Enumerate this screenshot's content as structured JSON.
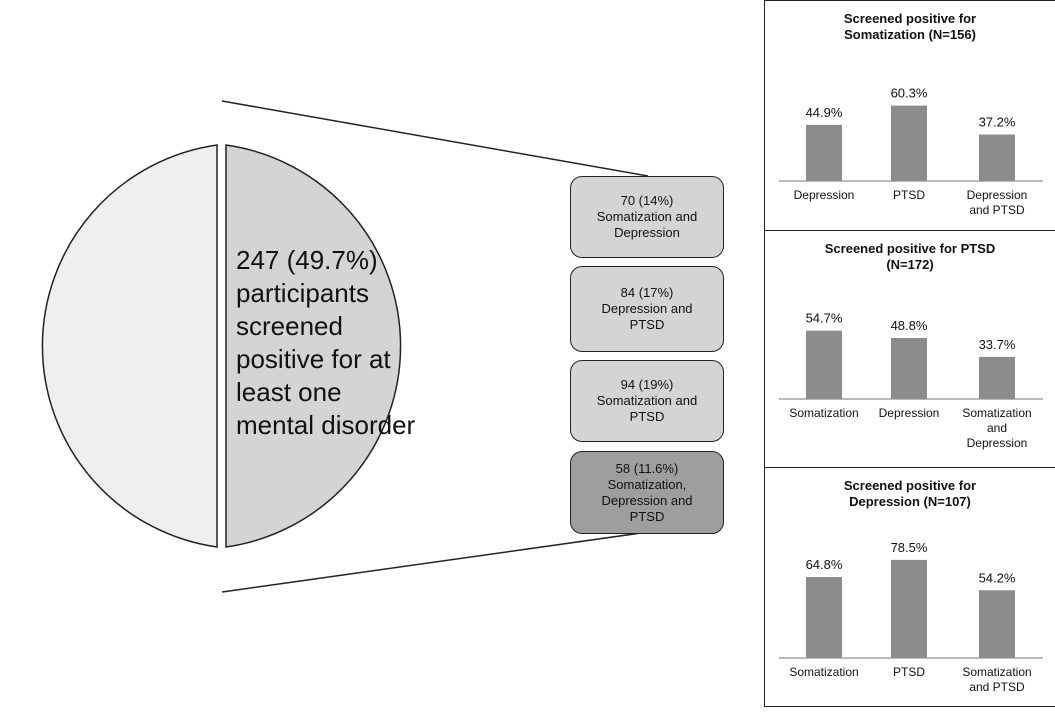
{
  "pie": {
    "text": "247 (49.7%) participants screened positive for at least one mental disorder",
    "percent": 49.7
  },
  "boxes": [
    {
      "text": "70 (14%)\nSomatization and\nDepression",
      "shade": "light"
    },
    {
      "text": "84 (17%)\nDepression and\nPTSD",
      "shade": "light"
    },
    {
      "text": "94 (19%)\nSomatization and\nPTSD",
      "shade": "light"
    },
    {
      "text": "58 (11.6%)\nSomatization,\nDepression and\nPTSD",
      "shade": "dark"
    }
  ],
  "colors": {
    "pie_left": "#efefef",
    "pie_right": "#d4d4d4",
    "box_light": "#d4d4d4",
    "box_dark": "#9e9e9e",
    "bar": "#8c8c8c"
  },
  "chart_data": [
    {
      "type": "bar",
      "title": "Screened positive for\nSomatization (N=156)",
      "categories": [
        "Depression",
        "PTSD",
        "Depression\nand PTSD"
      ],
      "values": [
        44.9,
        60.3,
        37.2
      ],
      "value_labels": [
        "44.9%",
        "60.3%",
        "37.2%"
      ],
      "ylim": [
        0,
        80
      ]
    },
    {
      "type": "bar",
      "title": "Screened positive for PTSD\n(N=172)",
      "categories": [
        "Somatization",
        "Depression",
        "Somatization\nand\nDepression"
      ],
      "values": [
        54.7,
        48.8,
        33.7
      ],
      "value_labels": [
        "54.7%",
        "48.8%",
        "33.7%"
      ],
      "ylim": [
        0,
        80
      ]
    },
    {
      "type": "bar",
      "title": "Screened positive for\nDepression (N=107)",
      "categories": [
        "Somatization",
        "PTSD",
        "Somatization\nand PTSD"
      ],
      "values": [
        64.8,
        78.5,
        54.2
      ],
      "value_labels": [
        "64.8%",
        "78.5%",
        "54.2%"
      ],
      "ylim": [
        0,
        100
      ]
    }
  ]
}
